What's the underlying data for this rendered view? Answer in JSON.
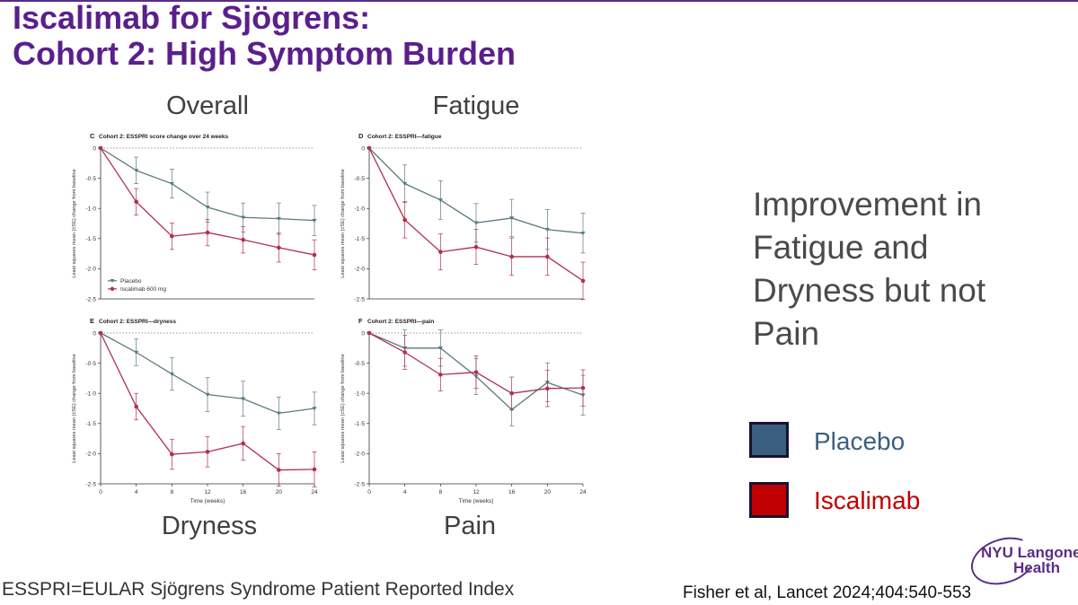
{
  "slide": {
    "title_line1": "Iscalimab for Sjögrens:",
    "title_line2": "Cohort 2: High Symptom Burden",
    "panel_labels": {
      "overall": "Overall",
      "fatigue": "Fatigue",
      "dryness": "Dryness",
      "pain": "Pain"
    },
    "side_text": "Improvement in Fatigue and Dryness but not Pain",
    "legend": [
      {
        "label": "Placebo",
        "color": "#3a5f80"
      },
      {
        "label": "Iscalimab",
        "color": "#c00000"
      }
    ],
    "footnote": "ESSPRI=EULAR Sjögrens Syndrome Patient Reported Index",
    "citation": "Fisher et al, Lancet 2024;404:540-553",
    "logo": {
      "line1": "NYU Langone",
      "line2": "Health"
    }
  },
  "colors": {
    "placebo": "#5a7a80",
    "iscalimab": "#b0304e",
    "title": "#5b1f8c"
  },
  "chart_data": [
    {
      "type": "line",
      "panel": "C",
      "title": "Cohort 2: ESSPRI score change over 24 weeks",
      "xlabel": "",
      "ylabel": "Least squares mean (±SE) change from baseline",
      "x": [
        0,
        4,
        8,
        12,
        16,
        20,
        24
      ],
      "xlim": [
        0,
        24
      ],
      "ylim": [
        -2.5,
        0
      ],
      "yticks": [
        0,
        -0.5,
        -1.0,
        -1.5,
        -2.0,
        -2.5
      ],
      "ytick_labels": [
        "0",
        "-0·5",
        "-1·0",
        "-1·5",
        "-2·0",
        "-2·5"
      ],
      "xticks": [],
      "xtick_labels": [],
      "grid": false,
      "legend": [
        {
          "label": "Placebo",
          "marker": "triangle"
        },
        {
          "label": "Iscalimab 600 mg",
          "marker": "circle"
        }
      ],
      "legend_position": "bottom-left",
      "series": [
        {
          "name": "Placebo",
          "values": [
            0,
            -0.37,
            -0.59,
            -0.98,
            -1.15,
            -1.17,
            -1.2
          ],
          "se": [
            0,
            0.22,
            0.24,
            0.25,
            0.24,
            0.26,
            0.25
          ]
        },
        {
          "name": "Iscalimab 600 mg",
          "values": [
            0,
            -0.89,
            -1.46,
            -1.4,
            -1.52,
            -1.65,
            -1.77
          ],
          "se": [
            0,
            0.22,
            0.22,
            0.22,
            0.22,
            0.24,
            0.25
          ]
        }
      ]
    },
    {
      "type": "line",
      "panel": "D",
      "title": "Cohort 2: ESSPRI—fatigue",
      "xlabel": "",
      "ylabel": "Least squares mean (±SE) change from baseline",
      "x": [
        0,
        4,
        8,
        12,
        16,
        20,
        24
      ],
      "xlim": [
        0,
        24
      ],
      "ylim": [
        -2.5,
        0
      ],
      "yticks": [
        0,
        -0.5,
        -1.0,
        -1.5,
        -2.0,
        -2.5
      ],
      "ytick_labels": [
        "0",
        "-0·5",
        "-1·0",
        "-1·5",
        "-2·0",
        "-2·5"
      ],
      "xticks": [],
      "xtick_labels": [],
      "grid": false,
      "series": [
        {
          "name": "Placebo",
          "values": [
            0,
            -0.59,
            -0.86,
            -1.24,
            -1.16,
            -1.35,
            -1.41
          ],
          "se": [
            0,
            0.31,
            0.32,
            0.32,
            0.31,
            0.33,
            0.33
          ]
        },
        {
          "name": "Iscalimab 600 mg",
          "values": [
            0,
            -1.19,
            -1.72,
            -1.64,
            -1.8,
            -1.8,
            -2.2
          ],
          "se": [
            0,
            0.3,
            0.3,
            0.29,
            0.31,
            0.31,
            0.31
          ]
        }
      ]
    },
    {
      "type": "line",
      "panel": "E",
      "title": "Cohort 2: ESSPRI—dryness",
      "xlabel": "Time (weeks)",
      "ylabel": "Least squares mean (±SE) change from baseline",
      "x": [
        0,
        4,
        8,
        12,
        16,
        20,
        24
      ],
      "xlim": [
        0,
        24
      ],
      "ylim": [
        -2.5,
        0
      ],
      "yticks": [
        0,
        -0.5,
        -1.0,
        -1.5,
        -2.0,
        -2.5
      ],
      "ytick_labels": [
        "0",
        "-0·5",
        "-1·0",
        "-1·5",
        "-2·0",
        "-2·5"
      ],
      "xticks": [
        0,
        4,
        8,
        12,
        16,
        20,
        24
      ],
      "xtick_labels": [
        "0",
        "4",
        "8",
        "12",
        "16",
        "20",
        "24"
      ],
      "grid": false,
      "series": [
        {
          "name": "Placebo",
          "values": [
            0,
            -0.32,
            -0.68,
            -1.02,
            -1.09,
            -1.33,
            -1.25
          ],
          "se": [
            0,
            0.22,
            0.27,
            0.28,
            0.29,
            0.27,
            0.27
          ]
        },
        {
          "name": "Iscalimab 600 mg",
          "values": [
            0,
            -1.22,
            -2.01,
            -1.97,
            -1.83,
            -2.27,
            -2.26
          ],
          "se": [
            0,
            0.22,
            0.25,
            0.25,
            0.28,
            0.27,
            0.29
          ]
        }
      ]
    },
    {
      "type": "line",
      "panel": "F",
      "title": "Cohort 2: ESSPRI—pain",
      "xlabel": "Time (weeks)",
      "ylabel": "Least squares mean (±SE) change from baseline",
      "x": [
        0,
        4,
        8,
        12,
        16,
        20,
        24
      ],
      "xlim": [
        0,
        24
      ],
      "ylim": [
        -2.5,
        0
      ],
      "yticks": [
        0,
        -0.5,
        -1.0,
        -1.5,
        -2.0,
        -2.5
      ],
      "ytick_labels": [
        "0",
        "-0·5",
        "-1·0",
        "-1·5",
        "-2·0",
        "-2·5"
      ],
      "xticks": [
        0,
        4,
        8,
        12,
        16,
        20,
        24
      ],
      "xtick_labels": [
        "0",
        "4",
        "8",
        "12",
        "16",
        "20",
        "24"
      ],
      "grid": false,
      "series": [
        {
          "name": "Placebo",
          "values": [
            0,
            -0.25,
            -0.25,
            -0.72,
            -1.27,
            -0.82,
            -1.03
          ],
          "se": [
            0,
            0.3,
            0.3,
            0.3,
            0.27,
            0.32,
            0.33
          ]
        },
        {
          "name": "Iscalimab 600 mg",
          "values": [
            0,
            -0.32,
            -0.69,
            -0.65,
            -1.0,
            -0.92,
            -0.91
          ],
          "se": [
            0,
            0.28,
            0.27,
            0.27,
            0.27,
            0.3,
            0.3
          ]
        }
      ]
    }
  ]
}
